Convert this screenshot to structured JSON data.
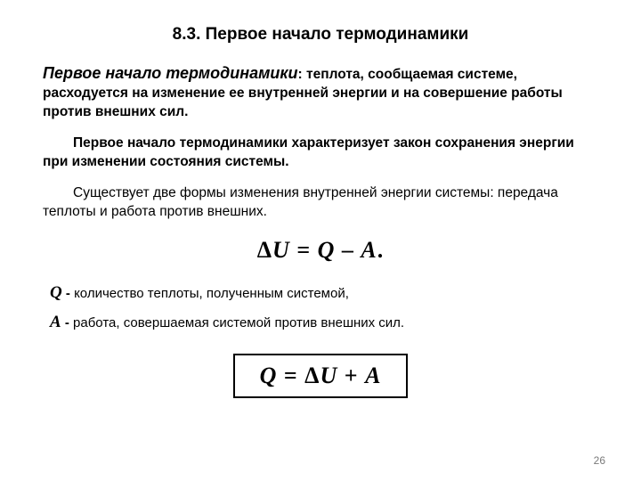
{
  "title": "8.3. Первое начало термодинамики",
  "definition": {
    "lead": "Первое начало термодинамики",
    "rest": ": теплота, сообщаемая системе, расходуется на изменение ее внутренней энергии и на совершение работы против внешних сил."
  },
  "para1": "Первое начало термодинамики характеризует закон сохранения энергии при изменении состояния системы.",
  "para2": "Существует две формы изменения внутренней энергии системы: передача теплоты и работа против внешних.",
  "equation1": {
    "lhs_delta": "Δ",
    "lhs_var": "U",
    "eq": " = ",
    "rhs1": "Q",
    "minus": " – ",
    "rhs2": "A",
    "dot": "."
  },
  "legend": {
    "q_sym": "Q",
    "q_text": " количество теплоты, полученным системой,",
    "a_sym": "A",
    "a_text": "  работа, совершаемая системой против внешних сил.",
    "dash": " - "
  },
  "equation2": {
    "lhs": "Q",
    "eq": " = ",
    "rhs_delta": "Δ",
    "rhs_var": "U",
    "plus": " + ",
    "rhs2": "A"
  },
  "page_number": "26",
  "colors": {
    "text": "#000000",
    "bg": "#ffffff",
    "page_num": "#7a7a7a",
    "border": "#000000"
  },
  "fonts": {
    "body_size_pt": 15.5,
    "title_size_pt": 19,
    "equation_size_pt": 26,
    "symbol_size_pt": 19
  }
}
